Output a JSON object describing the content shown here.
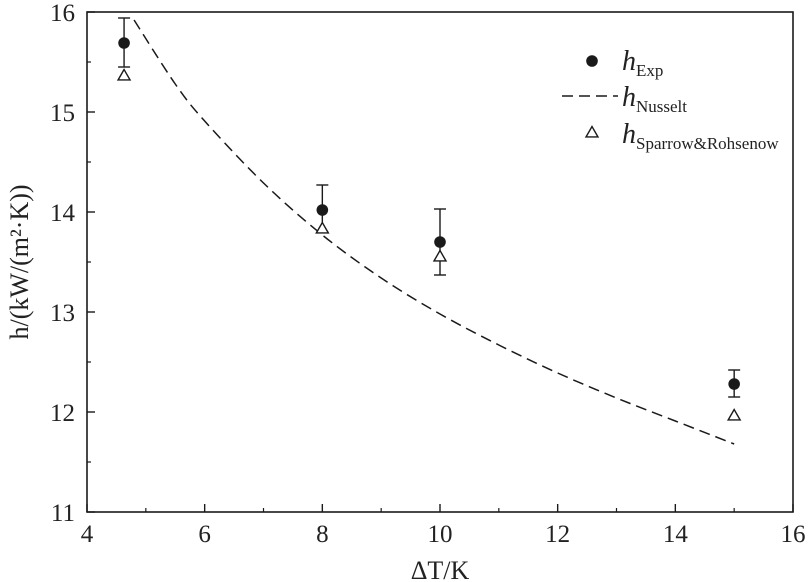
{
  "chart_data": {
    "type": "scatter",
    "xlabel": "ΔT/K",
    "ylabel": "h/(kW/(m²·K))",
    "xlim": [
      4,
      16
    ],
    "ylim": [
      11,
      16
    ],
    "xticks": [
      4,
      6,
      8,
      10,
      12,
      14,
      16
    ],
    "yticks": [
      11,
      12,
      13,
      14,
      15,
      16
    ],
    "grid": false,
    "legend_position": "top-right",
    "series": [
      {
        "name": "h_Exp",
        "label_main": "h",
        "label_sub": "Exp",
        "marker": "filled-circle",
        "color": "#1a1a1a",
        "x": [
          4.63,
          8.0,
          10.0,
          15.0
        ],
        "y": [
          15.69,
          14.02,
          13.7,
          12.28
        ],
        "error_upper": [
          15.94,
          14.27,
          14.03,
          12.42
        ],
        "error_lower": [
          15.45,
          13.8,
          13.37,
          12.15
        ]
      },
      {
        "name": "h_Nusselt",
        "label_main": "h",
        "label_sub": "Nusselt",
        "marker": "none",
        "line": "dashed",
        "color": "#1a1a1a",
        "x": [
          4.8,
          5.5,
          6,
          7,
          8,
          9,
          10,
          11,
          12,
          13,
          14,
          15
        ],
        "y": [
          15.92,
          15.28,
          14.91,
          14.29,
          13.77,
          13.34,
          12.98,
          12.67,
          12.39,
          12.14,
          11.91,
          11.68
        ]
      },
      {
        "name": "h_Sparrow&Rohsenow",
        "label_main": "h",
        "label_sub": "Sparrow&Rohsenow",
        "marker": "open-triangle",
        "color": "#1a1a1a",
        "x": [
          4.63,
          8.0,
          10.0,
          15.0
        ],
        "y": [
          15.36,
          13.83,
          13.55,
          11.96
        ]
      }
    ]
  }
}
